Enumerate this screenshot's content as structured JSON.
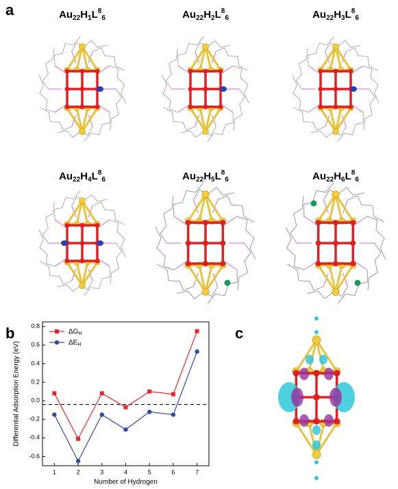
{
  "panel_labels": [
    "a",
    "b",
    "c"
  ],
  "structures": [
    {
      "parts": [
        "Au",
        "22",
        "H",
        "1",
        "L",
        "8",
        "6"
      ]
    },
    {
      "parts": [
        "Au",
        "22",
        "H",
        "2",
        "L",
        "8",
        "6"
      ]
    },
    {
      "parts": [
        "Au",
        "22",
        "H",
        "3",
        "L",
        "8",
        "6"
      ]
    },
    {
      "parts": [
        "Au",
        "22",
        "H",
        "4",
        "L",
        "8",
        "6"
      ]
    },
    {
      "parts": [
        "Au",
        "22",
        "H",
        "5",
        "L",
        "8",
        "6"
      ]
    },
    {
      "parts": [
        "Au",
        "22",
        "H",
        "6",
        "L",
        "8",
        "6"
      ]
    }
  ],
  "chart_data": {
    "type": "line",
    "x_label": "Number of Hydrogen",
    "y_label": "Differential Adsorption Energy (eV)",
    "x": [
      1,
      2,
      3,
      4,
      5,
      6,
      7
    ],
    "series": [
      {
        "name": "ΔG",
        "subscript": "H",
        "color": "#e8262a",
        "marker": "square",
        "values": [
          0.08,
          -0.41,
          0.08,
          -0.07,
          0.1,
          0.07,
          0.75
        ]
      },
      {
        "name": "ΔE",
        "subscript": "H",
        "color": "#2e4aa8",
        "marker": "circle",
        "values": [
          -0.15,
          -0.65,
          -0.15,
          -0.31,
          -0.12,
          -0.15,
          0.53
        ]
      }
    ],
    "reference_line": -0.04,
    "xlim": [
      0.5,
      7.5
    ],
    "xticks": [
      1,
      2,
      3,
      4,
      5,
      6,
      7
    ],
    "ylim": [
      -0.7,
      0.85
    ],
    "yticks": [
      -0.6,
      -0.4,
      -0.2,
      {
        "value": 0,
        "label": "0.0"
      },
      0.2,
      0.4,
      0.6,
      0.8
    ],
    "legend": "upper-left"
  }
}
